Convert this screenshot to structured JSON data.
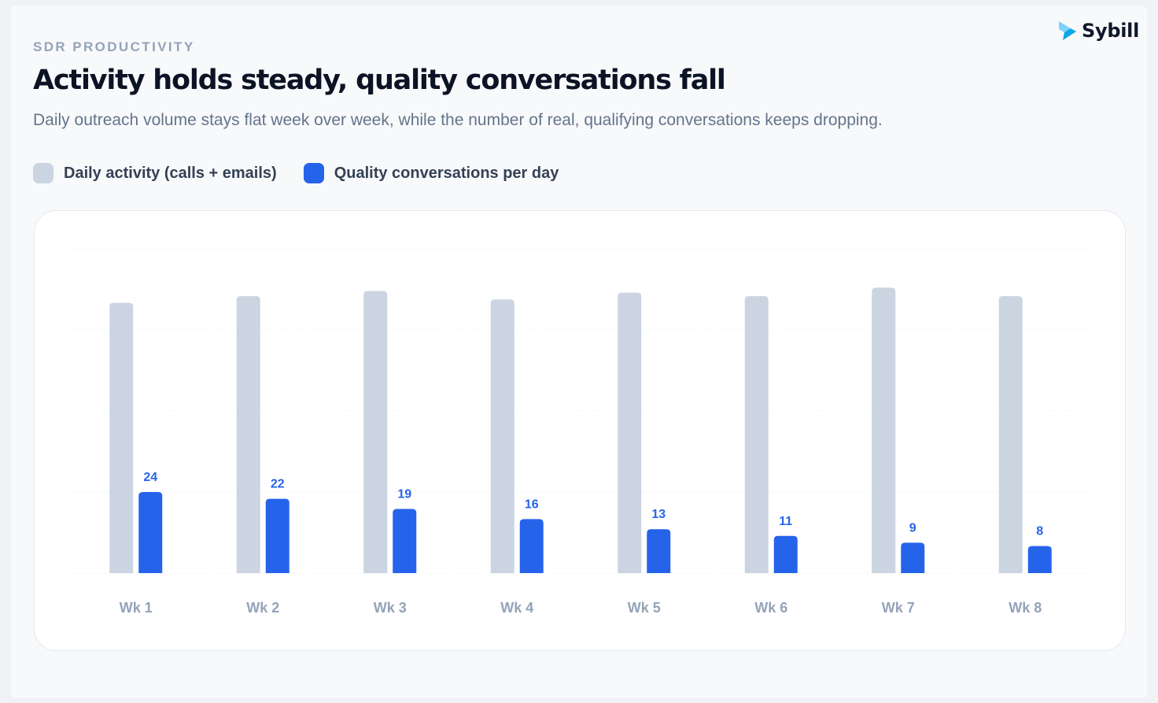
{
  "header": {
    "eyebrow": "SDR PRODUCTIVITY",
    "title": "Activity holds steady, quality conversations fall",
    "subtitle": "Daily outreach volume stays flat week over week, while the number of real, qualifying conversations keeps dropping.",
    "brand": "Sybill"
  },
  "colors": {
    "activity": "#cbd5e1",
    "quality": "#2563eb",
    "logo_light": "#7dd3fc",
    "logo_dark": "#0ea5e9"
  },
  "icons": {
    "logo": "sybill-logo-icon"
  },
  "chart_data": {
    "type": "bar",
    "categories": [
      "Wk 1",
      "Wk 2",
      "Wk 3",
      "Wk 4",
      "Wk 5",
      "Wk 6",
      "Wk 7",
      "Wk 8"
    ],
    "series": [
      {
        "name": "Daily activity (calls + emails)",
        "values": [
          80,
          82,
          83.5,
          81,
          83,
          82,
          84.5,
          82
        ],
        "labeled": false
      },
      {
        "name": "Quality conversations per day",
        "values": [
          24,
          22,
          19,
          16,
          13,
          11,
          9,
          8
        ],
        "labeled": true
      }
    ],
    "ylim": [
      0,
      96
    ],
    "yticks": [
      0,
      24,
      48,
      72,
      96
    ],
    "grid": true,
    "show_y_axis_labels": false,
    "legend_position": "top-left"
  }
}
